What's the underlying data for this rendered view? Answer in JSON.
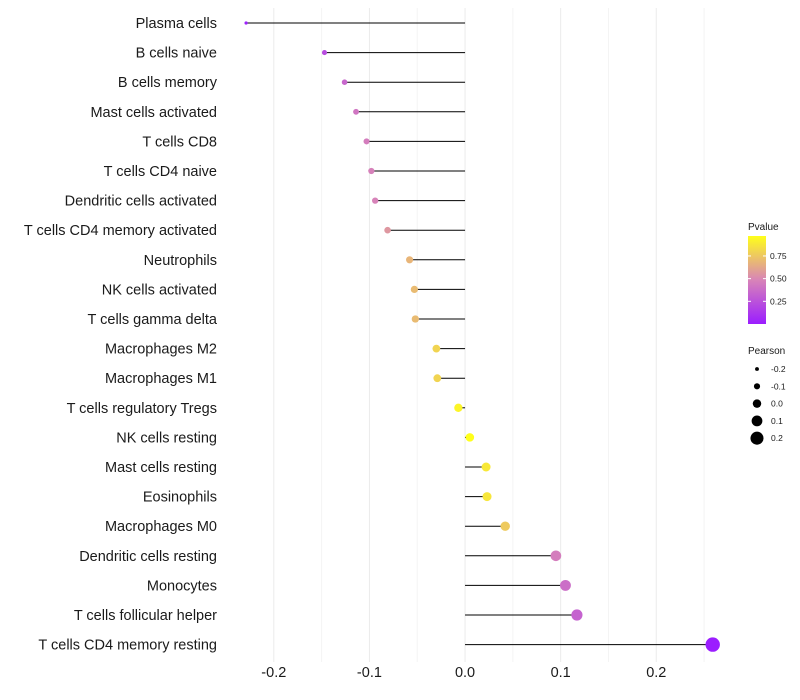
{
  "chart_data": {
    "type": "lollipop",
    "title": "",
    "xlabel": "",
    "ylabel": "",
    "xlim": [
      -0.25,
      0.275
    ],
    "x_ticks": [
      -0.2,
      -0.1,
      0.0,
      0.1,
      0.2
    ],
    "x_tick_labels": [
      "-0.2",
      "-0.1",
      "0.0",
      "0.1",
      "0.2"
    ],
    "grid": true,
    "categories": [
      "Plasma cells",
      "B cells naive",
      "B cells memory",
      "Mast cells activated",
      "T cells CD8",
      "T cells CD4 naive",
      "Dendritic cells activated",
      "T cells CD4 memory activated",
      "Neutrophils",
      "NK cells activated",
      "T cells gamma delta",
      "Macrophages M2",
      "Macrophages M1",
      "T cells regulatory  Tregs ",
      "NK cells resting",
      "Mast cells resting",
      "Eosinophils",
      "Macrophages M0",
      "Dendritic cells resting",
      "Monocytes",
      "T cells follicular helper",
      "T cells CD4 memory resting"
    ],
    "pearson": [
      -0.229,
      -0.147,
      -0.126,
      -0.114,
      -0.103,
      -0.098,
      -0.094,
      -0.081,
      -0.058,
      -0.053,
      -0.052,
      -0.03,
      -0.029,
      -0.007,
      0.005,
      0.022,
      0.023,
      0.042,
      0.095,
      0.105,
      0.117,
      0.259
    ],
    "pvalue": [
      0.02,
      0.22,
      0.35,
      0.42,
      0.45,
      0.47,
      0.48,
      0.56,
      0.68,
      0.7,
      0.7,
      0.8,
      0.8,
      0.93,
      0.97,
      0.88,
      0.87,
      0.76,
      0.45,
      0.38,
      0.33,
      0.0001
    ],
    "legend": {
      "position": "right",
      "color": {
        "title": "Pvalue",
        "ticks": [
          0.25,
          0.5,
          0.75
        ],
        "tick_labels": [
          "0.25",
          "0.50",
          "0.75"
        ],
        "range": [
          0.0,
          0.97
        ],
        "low_color": "#9b1dff",
        "mid_color": "#d884b8",
        "high_color": "#ffff1a"
      },
      "size": {
        "title": "Pearson",
        "values": [
          -0.2,
          -0.1,
          0.0,
          0.1,
          0.2
        ],
        "labels": [
          "-0.2",
          "-0.1",
          "0.0",
          "0.1",
          "0.2"
        ]
      }
    }
  }
}
